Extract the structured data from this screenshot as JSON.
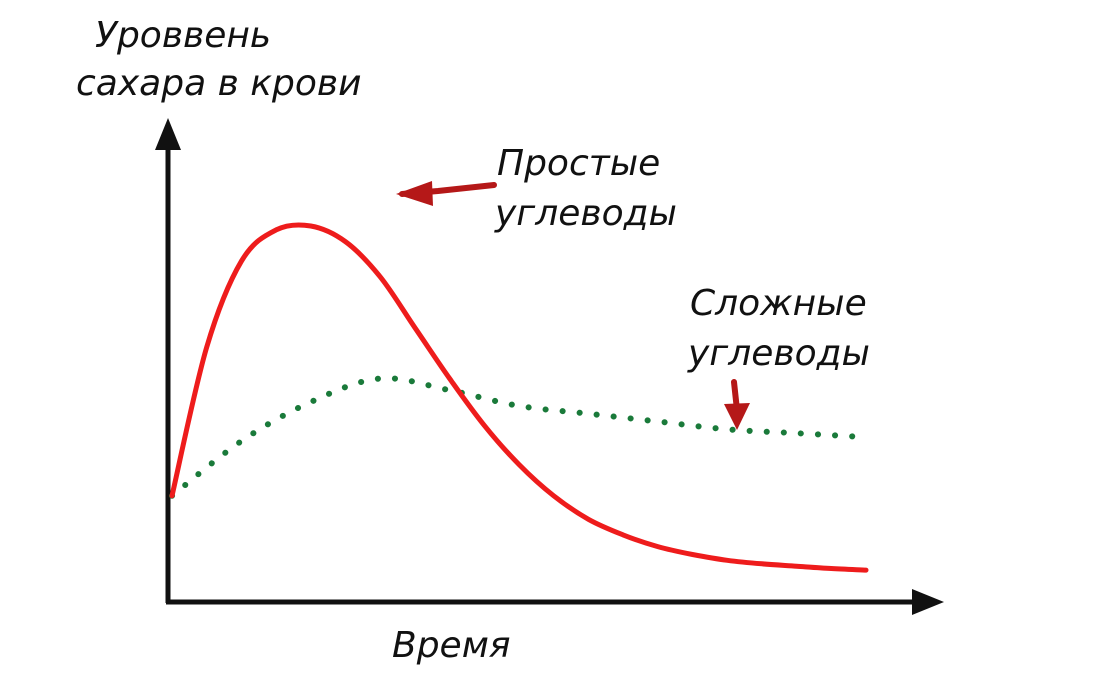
{
  "chart_data": {
    "type": "line",
    "title": "",
    "ylabel": [
      "Уроввень",
      "сахара в крови"
    ],
    "xlabel": "Время",
    "xlim": [
      0,
      100
    ],
    "ylim": [
      0,
      100
    ],
    "grid": false,
    "legend": "inline annotations with arrows",
    "series": [
      {
        "name": [
          "Простые",
          "углеводы"
        ],
        "color": "#ee1c1c",
        "style": "solid",
        "x": [
          0,
          5,
          10,
          15,
          20,
          25,
          30,
          35,
          40,
          45,
          50,
          55,
          60,
          65,
          70,
          75,
          80,
          85,
          90,
          95,
          100
        ],
        "y": [
          20,
          58,
          80,
          88,
          89,
          85,
          76,
          63,
          50,
          38,
          28,
          20,
          14,
          10,
          7,
          5,
          3.5,
          2.6,
          2,
          1.4,
          1
        ]
      },
      {
        "name": [
          "Сложные",
          "углеводы"
        ],
        "color": "#1a7a3a",
        "style": "dotted",
        "x": [
          0,
          10,
          20,
          30,
          40,
          50,
          60,
          70,
          80,
          90,
          100
        ],
        "y": [
          20,
          34,
          44,
          50,
          47,
          43,
          41,
          39,
          37,
          36,
          35
        ]
      }
    ]
  }
}
